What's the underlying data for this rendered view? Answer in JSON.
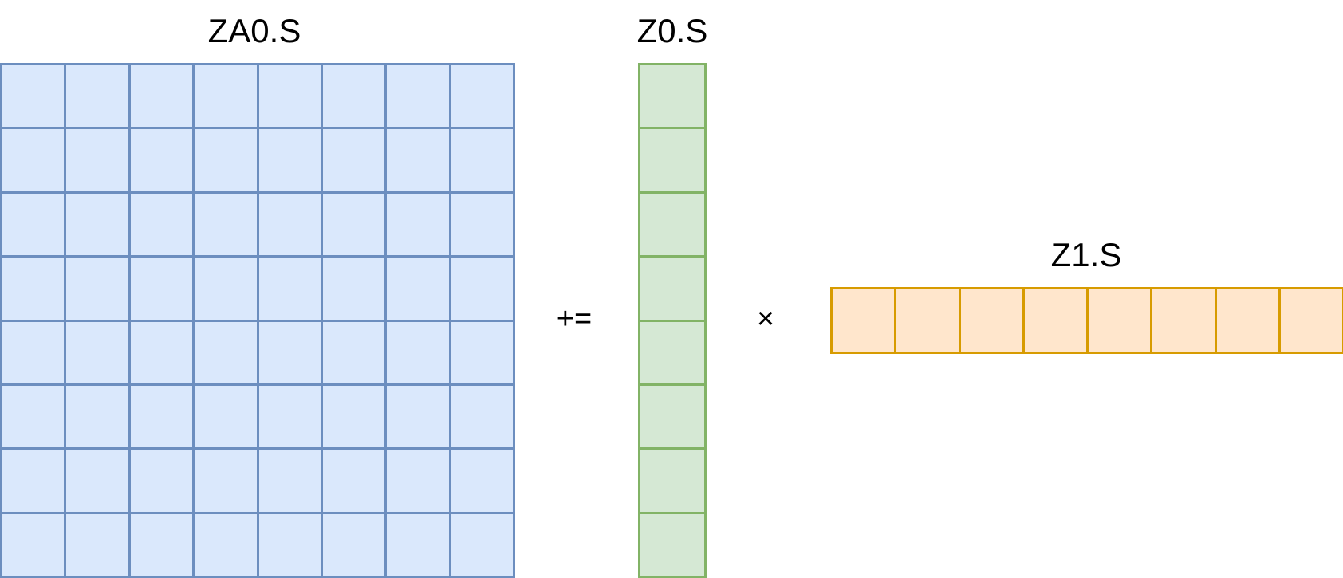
{
  "za0": {
    "label": "ZA0.S",
    "rows": 8,
    "cols": 8,
    "fill": "#dae8fc",
    "stroke": "#6c8ebf"
  },
  "operator_plus_equals": "+=",
  "z0": {
    "label": "Z0.S",
    "rows": 8,
    "cols": 1,
    "fill": "#d5e8d4",
    "stroke": "#82b366"
  },
  "operator_times": "×",
  "z1": {
    "label": "Z1.S",
    "rows": 1,
    "cols": 8,
    "fill": "#ffe6cc",
    "stroke": "#d79b00"
  }
}
